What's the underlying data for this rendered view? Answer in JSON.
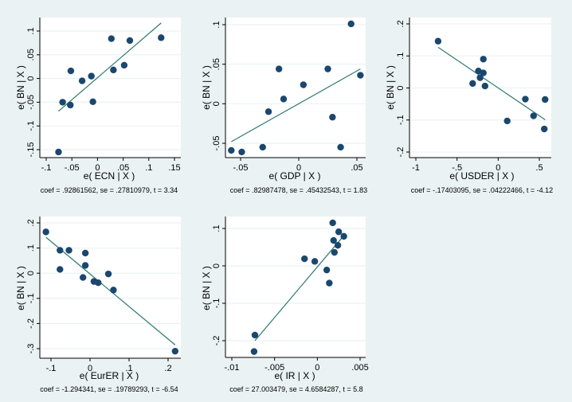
{
  "colors": {
    "background": "#eaf2f3",
    "plot_region": "#ffffff",
    "gridline": "#eaf2f3",
    "marker": "#1a476f",
    "fit_line": "#2d7a6d",
    "axis": "#000000"
  },
  "chart_data": [
    {
      "type": "scatter",
      "title": "",
      "xlabel": "e( ECN | X )",
      "ylabel": "e( BN | X )",
      "note": "coef = .92861562, se = .27810979, t = 3.34",
      "xlim": [
        -0.1,
        0.15
      ],
      "ylim": [
        -0.15,
        0.1
      ],
      "xticks": [
        -0.1,
        -0.05,
        0,
        0.05,
        0.1,
        0.15
      ],
      "xtick_labels": [
        "-.1",
        "-.05",
        "0",
        ".05",
        ".1",
        ".15"
      ],
      "yticks": [
        -0.15,
        -0.1,
        -0.05,
        0,
        0.05,
        0.1
      ],
      "ytick_labels": [
        "-.15",
        "-.1",
        "-.05",
        "0",
        ".05",
        ".1"
      ],
      "grid": true,
      "coef": 0.92861562,
      "points": [
        [
          -0.076,
          -0.155
        ],
        [
          -0.068,
          -0.05
        ],
        [
          -0.053,
          -0.056
        ],
        [
          -0.052,
          0.016
        ],
        [
          -0.03,
          -0.005
        ],
        [
          -0.012,
          0.005
        ],
        [
          -0.009,
          -0.049
        ],
        [
          0.027,
          0.084
        ],
        [
          0.031,
          0.018
        ],
        [
          0.052,
          0.028
        ],
        [
          0.063,
          0.08
        ],
        [
          0.124,
          0.086
        ]
      ],
      "fit_line": [
        [
          -0.076,
          -0.069
        ],
        [
          0.124,
          0.117
        ]
      ]
    },
    {
      "type": "scatter",
      "title": "",
      "xlabel": "e( GDP | X )",
      "ylabel": "e( BN | X )",
      "note": "coef = .82987478, se = .45432543, t = 1.83",
      "xlim": [
        -0.05,
        0.05
      ],
      "ylim": [
        -0.05,
        0.1
      ],
      "xticks": [
        -0.05,
        0,
        0.05
      ],
      "xtick_labels": [
        "-.05",
        "0",
        ".05"
      ],
      "yticks": [
        -0.05,
        0,
        0.05,
        0.1
      ],
      "ytick_labels": [
        "-.05",
        "0",
        ".05",
        ".1"
      ],
      "grid": true,
      "coef": 0.82987478,
      "points": [
        [
          -0.058,
          -0.059
        ],
        [
          -0.049,
          -0.061
        ],
        [
          -0.031,
          -0.055
        ],
        [
          -0.026,
          -0.01
        ],
        [
          -0.017,
          0.044
        ],
        [
          -0.013,
          0.006
        ],
        [
          0.004,
          0.024
        ],
        [
          0.025,
          0.044
        ],
        [
          0.029,
          -0.017
        ],
        [
          0.036,
          -0.055
        ],
        [
          0.045,
          0.101
        ],
        [
          0.053,
          0.036
        ]
      ],
      "fit_line": [
        [
          -0.058,
          -0.048
        ],
        [
          0.053,
          0.044
        ]
      ]
    },
    {
      "type": "scatter",
      "title": "",
      "xlabel": "e( USDER | X )",
      "ylabel": "e( BN | X )",
      "note": "coef = -.17403095, se = .04222466, t = -4.12",
      "xlim": [
        -1,
        0.5
      ],
      "ylim": [
        -0.2,
        0.2
      ],
      "xticks": [
        -1,
        -0.5,
        0,
        0.5
      ],
      "xtick_labels": [
        "-1",
        "-.5",
        "0",
        ".5"
      ],
      "yticks": [
        -0.2,
        -0.1,
        0,
        0.1,
        0.2
      ],
      "ytick_labels": [
        "-.2",
        "-.1",
        "0",
        ".1",
        ".2"
      ],
      "grid": true,
      "coef": -0.17403095,
      "points": [
        [
          -0.73,
          0.146
        ],
        [
          -0.31,
          0.014
        ],
        [
          -0.24,
          0.053
        ],
        [
          -0.22,
          0.032
        ],
        [
          -0.18,
          0.09
        ],
        [
          -0.18,
          0.047
        ],
        [
          -0.16,
          0.006
        ],
        [
          0.11,
          -0.103
        ],
        [
          0.33,
          -0.035
        ],
        [
          0.43,
          -0.087
        ],
        [
          0.56,
          -0.128
        ],
        [
          0.57,
          -0.036
        ]
      ],
      "fit_line": [
        [
          -0.73,
          0.127
        ],
        [
          0.57,
          -0.099
        ]
      ]
    },
    {
      "type": "scatter",
      "title": "",
      "xlabel": "e( EurER | X )",
      "ylabel": "e( BN | X )",
      "note": "coef = -1.294341, se = .19789293, t = -6.54",
      "xlim": [
        -0.1,
        0.2
      ],
      "ylim": [
        -0.3,
        0.2
      ],
      "xticks": [
        -0.1,
        0,
        0.1,
        0.2
      ],
      "xtick_labels": [
        "-.1",
        "0",
        ".1",
        ".2"
      ],
      "yticks": [
        -0.3,
        -0.2,
        -0.1,
        0,
        0.1,
        0.2
      ],
      "ytick_labels": [
        "-.3",
        "-.2",
        "-.1",
        "0",
        ".1",
        ".2"
      ],
      "grid": true,
      "coef": -1.294341,
      "points": [
        [
          -0.113,
          0.164
        ],
        [
          -0.077,
          0.091
        ],
        [
          -0.077,
          0.015
        ],
        [
          -0.054,
          0.091
        ],
        [
          -0.012,
          0.08
        ],
        [
          -0.018,
          -0.017
        ],
        [
          -0.012,
          0.031
        ],
        [
          0.01,
          -0.033
        ],
        [
          0.021,
          -0.038
        ],
        [
          0.047,
          -0.003
        ],
        [
          0.06,
          -0.067
        ],
        [
          0.218,
          -0.31
        ]
      ],
      "fit_line": [
        [
          -0.113,
          0.143
        ],
        [
          0.218,
          -0.285
        ]
      ]
    },
    {
      "type": "scatter",
      "title": "",
      "xlabel": "e( IR | X )",
      "ylabel": "e( BN | X )",
      "note": "coef = 27.003479, se = 4.6584287, t = 5.8",
      "xlim": [
        -0.01,
        0.005
      ],
      "ylim": [
        -0.2,
        0.1
      ],
      "xticks": [
        -0.01,
        -0.005,
        0,
        0.005
      ],
      "xtick_labels": [
        "-.01",
        "-.005",
        "0",
        ".005"
      ],
      "yticks": [
        -0.2,
        -0.1,
        0,
        0.1
      ],
      "ytick_labels": [
        "-.2",
        "-.1",
        "0",
        ".1"
      ],
      "grid": true,
      "coef": 27.003479,
      "points": [
        [
          -0.0074,
          -0.229
        ],
        [
          -0.0073,
          -0.185
        ],
        [
          -0.0015,
          0.019
        ],
        [
          -0.0003,
          0.012
        ],
        [
          0.0011,
          -0.011
        ],
        [
          0.0014,
          -0.046
        ],
        [
          0.0018,
          0.115
        ],
        [
          0.0019,
          0.068
        ],
        [
          0.002,
          0.036
        ],
        [
          0.0024,
          0.055
        ],
        [
          0.0025,
          0.091
        ],
        [
          0.0031,
          0.079
        ]
      ],
      "fit_line": [
        [
          -0.0073,
          -0.2
        ],
        [
          0.0031,
          0.081
        ]
      ]
    }
  ]
}
